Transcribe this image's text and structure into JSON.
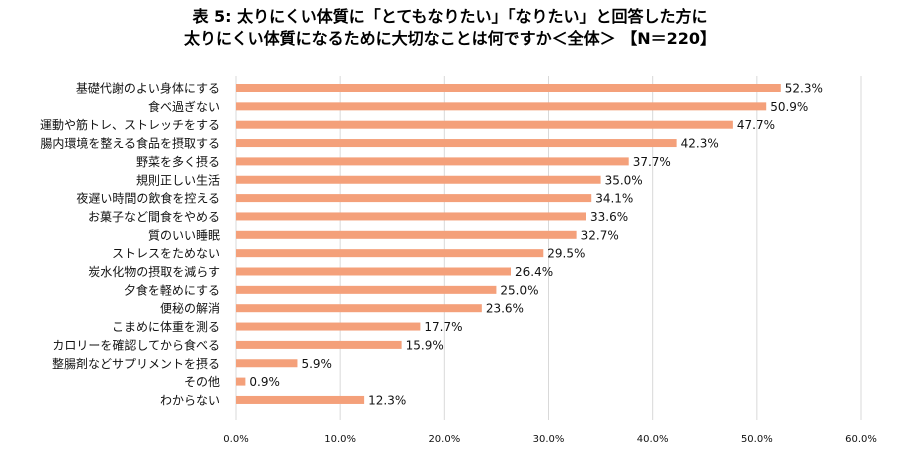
{
  "title": {
    "line1": "表 5: 太りにくい体質に「とてもなりたい」「なりたい」と回答した方に",
    "line2": "太りにくい体質になるために大切なことは何ですか＜全体＞ 【N＝220】"
  },
  "colors": {
    "bar": "#F4A07A",
    "grid": "#D9D9D9",
    "text": "#111111"
  },
  "chart_data": {
    "type": "bar",
    "orientation": "horizontal",
    "title": "表 5: 太りにくい体質に「とてもなりたい」「なりたい」と回答した方に 太りにくい体質になるために大切なことは何ですか＜全体＞ 【N＝220】",
    "categories": [
      "基礎代謝のよい身体にする",
      "食べ過ぎない",
      "運動や筋トレ、ストレッチをする",
      "腸内環境を整える食品を摂取する",
      "野菜を多く摂る",
      "規則正しい生活",
      "夜遅い時間の飲食を控える",
      "お菓子など間食をやめる",
      "質のいい睡眠",
      "ストレスをためない",
      "炭水化物の摂取を減らす",
      "夕食を軽めにする",
      "便秘の解消",
      "こまめに体重を測る",
      "カロリーを確認してから食べる",
      "整腸剤などサプリメントを摂る",
      "その他",
      "わからない"
    ],
    "values": [
      52.3,
      50.9,
      47.7,
      42.3,
      37.7,
      35.0,
      34.1,
      33.6,
      32.7,
      29.5,
      26.4,
      25.0,
      23.6,
      17.7,
      15.9,
      5.9,
      0.9,
      12.3
    ],
    "value_labels": [
      "52.3%",
      "50.9%",
      "47.7%",
      "42.3%",
      "37.7%",
      "35.0%",
      "34.1%",
      "33.6%",
      "32.7%",
      "29.5%",
      "26.4%",
      "25.0%",
      "23.6%",
      "17.7%",
      "15.9%",
      "5.9%",
      "0.9%",
      "12.3%"
    ],
    "x_ticks": [
      0,
      10,
      20,
      30,
      40,
      50,
      60
    ],
    "x_tick_labels": [
      "0.0%",
      "10.0%",
      "20.0%",
      "30.0%",
      "40.0%",
      "50.0%",
      "60.0%"
    ],
    "xlim": [
      0,
      60
    ],
    "grid": true,
    "legend": "none"
  }
}
